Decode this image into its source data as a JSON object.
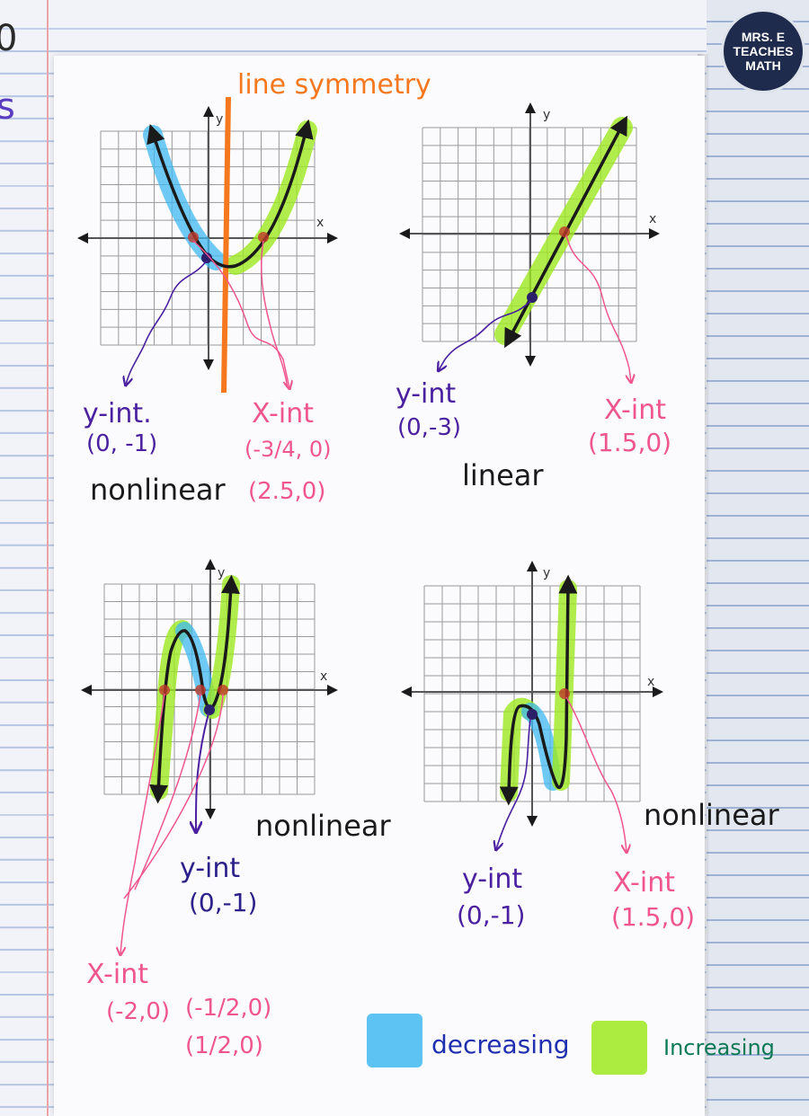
{
  "logo": {
    "line1": "MRS. E",
    "line2": "TEACHES",
    "line3": "MATH"
  },
  "margin_scribbles": {
    "top": "0",
    "second": "s"
  },
  "axis_labels": {
    "x": "x",
    "y": "y"
  },
  "graph1": {
    "heading": "line symmetry",
    "y_int_label": "y-int.",
    "y_int_value": "(0, -1)",
    "x_int_label": "X-int",
    "x_int_value_1": "(-3/4, 0)",
    "x_int_value_2": "(2.5,0)",
    "type": "nonlinear"
  },
  "graph2": {
    "y_int_label": "y-int",
    "y_int_value": "(0,-3)",
    "x_int_label": "X-int",
    "x_int_value": "(1.5,0)",
    "type": "linear"
  },
  "graph3": {
    "y_int_label": "y-int",
    "y_int_value": "(0,-1)",
    "x_int_label": "X-int",
    "x_int_value_1": "(-2,0)",
    "x_int_value_2": "(-1/2,0)",
    "x_int_value_3": "(1/2,0)",
    "type": "nonlinear"
  },
  "graph4": {
    "y_int_label": "y-int",
    "y_int_value": "(0,-1)",
    "x_int_label": "X-int",
    "x_int_value": "(1.5,0)",
    "type": "nonlinear"
  },
  "legend": {
    "decreasing": "decreasing",
    "increasing": "Increasing"
  },
  "colors": {
    "decreasing": "#3fb8f0",
    "increasing": "#9ee81f",
    "symmetry": "#f5781e",
    "y_int": "#4a1fa0",
    "x_int": "#f0568e",
    "legend_decreasing": "#1f2fb0",
    "legend_increasing": "#0d7a55"
  }
}
